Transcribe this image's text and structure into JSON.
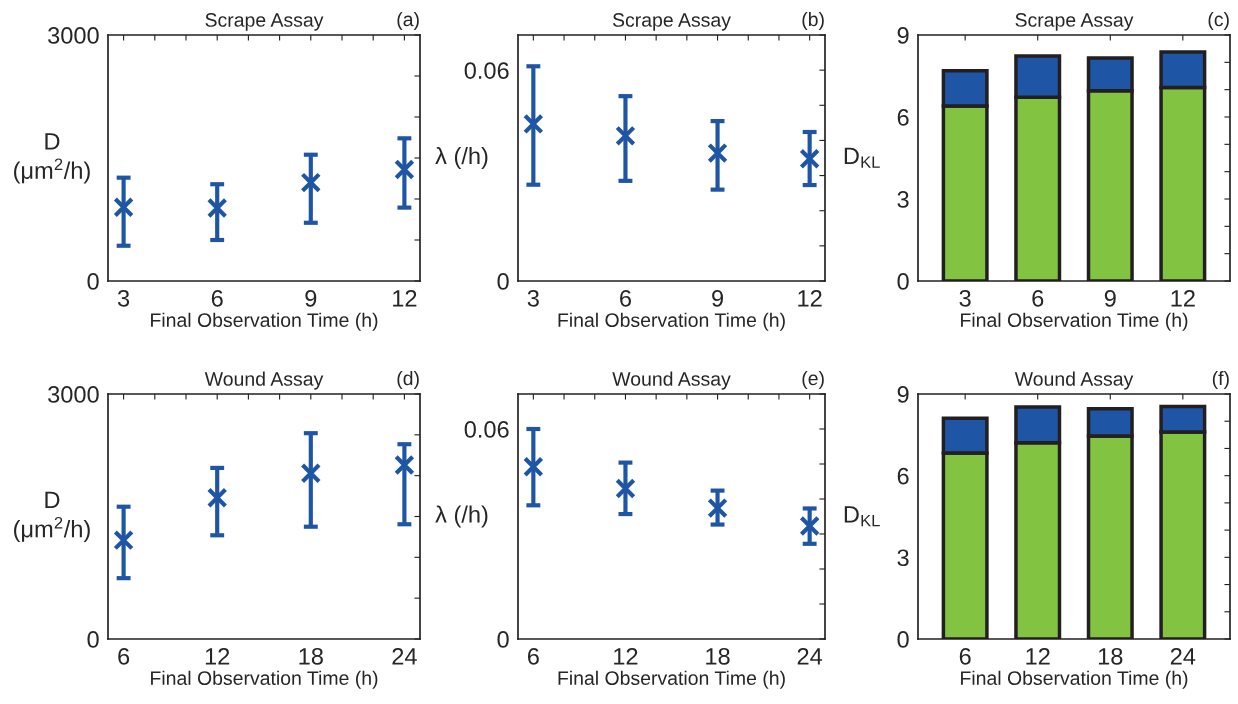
{
  "chart_data": [
    {
      "type": "scatter",
      "title": "Scrape Assay",
      "annotations": [
        "(a)"
      ],
      "ylabel": "D\n(μm$^{2}$/h)",
      "xlabel": "Final Observation Time (h)",
      "marker": "cross",
      "x": [
        3,
        6,
        9,
        12
      ],
      "xlim": [
        2.5,
        12.5
      ],
      "xticks": [
        3,
        {
          "value": 4,
          "label": null
        },
        {
          "value": 5,
          "label": null
        },
        6,
        {
          "value": 7,
          "label": null
        },
        {
          "value": 8,
          "label": null
        },
        9,
        {
          "value": 10,
          "label": null
        },
        {
          "value": 11,
          "label": null
        },
        12
      ],
      "ylim": [
        0,
        3000
      ],
      "yticks": [
        0,
        {
          "value": 500,
          "label": null
        },
        {
          "value": 1000,
          "label": null
        },
        {
          "value": 1500,
          "label": null
        },
        {
          "value": 2000,
          "label": null
        },
        {
          "value": 2500,
          "label": null
        },
        3000
      ],
      "series": [
        {
          "color": "#1f55a5",
          "values": [
            900,
            890,
            1200,
            1360
          ],
          "errors": [
            [
              430,
              1260
            ],
            [
              500,
              1180
            ],
            [
              710,
              1540
            ],
            [
              895,
              1740
            ]
          ]
        }
      ]
    },
    {
      "type": "scatter",
      "title": "Scrape Assay",
      "annotations": [
        "(b)"
      ],
      "ylabel": "λ (/h)",
      "xlabel": "Final Observation Time (h)",
      "marker": "cross",
      "x": [
        3,
        6,
        9,
        12
      ],
      "xlim": [
        2.5,
        12.5
      ],
      "xticks": [
        3,
        {
          "value": 4,
          "label": null
        },
        {
          "value": 5,
          "label": null
        },
        6,
        {
          "value": 7,
          "label": null
        },
        {
          "value": 8,
          "label": null
        },
        9,
        {
          "value": 10,
          "label": null
        },
        {
          "value": 11,
          "label": null
        },
        12
      ],
      "ylim": [
        0,
        0.07
      ],
      "yticks": [
        0,
        {
          "value": 0.01,
          "label": null
        },
        {
          "value": 0.02,
          "label": null
        },
        {
          "value": 0.03,
          "label": null
        },
        {
          "value": 0.04,
          "label": null
        },
        {
          "value": 0.05,
          "label": null
        },
        0.06,
        {
          "value": 0.07,
          "label": null
        }
      ],
      "series": [
        {
          "color": "#1f55a5",
          "values": [
            0.0447,
            0.0413,
            0.0364,
            0.0348
          ],
          "errors": [
            [
              0.0274,
              0.0611
            ],
            [
              0.0285,
              0.0526
            ],
            [
              0.026,
              0.0455
            ],
            [
              0.0273,
              0.0424
            ]
          ]
        }
      ]
    },
    {
      "type": "bar",
      "stacked": true,
      "title": "Scrape Assay",
      "annotations": [
        "(c)"
      ],
      "ylabel": "D$_{KL}$",
      "xlabel": "Final Observation Time (h)",
      "categories": [
        "3",
        "6",
        "9",
        "12"
      ],
      "ylim": [
        0,
        9
      ],
      "yticks": [
        0,
        {
          "value": 1,
          "label": null
        },
        {
          "value": 2,
          "label": null
        },
        3,
        {
          "value": 4,
          "label": null
        },
        {
          "value": 5,
          "label": null
        },
        6,
        {
          "value": 7,
          "label": null
        },
        {
          "value": 8,
          "label": null
        },
        9
      ],
      "series": [
        {
          "color": "#82c341",
          "values": [
            6.4,
            6.72,
            6.96,
            7.08
          ]
        },
        {
          "color": "#1f55a5",
          "values": [
            1.29,
            1.51,
            1.2,
            1.3
          ]
        }
      ]
    },
    {
      "type": "scatter",
      "title": "Wound Assay",
      "annotations": [
        "(d)"
      ],
      "ylabel": "D\n(μm$^{2}$/h)",
      "xlabel": "Final Observation Time (h)",
      "marker": "cross",
      "x": [
        6,
        12,
        18,
        24
      ],
      "xlim": [
        5,
        25
      ],
      "xticks": [
        6,
        {
          "value": 8,
          "label": null
        },
        {
          "value": 10,
          "label": null
        },
        12,
        {
          "value": 14,
          "label": null
        },
        {
          "value": 16,
          "label": null
        },
        18,
        {
          "value": 20,
          "label": null
        },
        {
          "value": 22,
          "label": null
        },
        24
      ],
      "ylim": [
        0,
        3000
      ],
      "yticks": [
        0,
        {
          "value": 500,
          "label": null
        },
        {
          "value": 1000,
          "label": null
        },
        {
          "value": 1500,
          "label": null
        },
        {
          "value": 2000,
          "label": null
        },
        {
          "value": 2500,
          "label": null
        },
        3000
      ],
      "series": [
        {
          "color": "#1f55a5",
          "values": [
            1210,
            1730,
            2030,
            2130
          ],
          "errors": [
            [
              745,
              1620
            ],
            [
              1270,
              2095
            ],
            [
              1375,
              2520
            ],
            [
              1405,
              2385
            ]
          ]
        }
      ]
    },
    {
      "type": "scatter",
      "title": "Wound Assay",
      "annotations": [
        "(e)"
      ],
      "ylabel": "λ (/h)",
      "xlabel": "Final Observation Time (h)",
      "marker": "cross",
      "x": [
        6,
        12,
        18,
        24
      ],
      "xlim": [
        5,
        25
      ],
      "xticks": [
        6,
        {
          "value": 8,
          "label": null
        },
        {
          "value": 10,
          "label": null
        },
        12,
        {
          "value": 14,
          "label": null
        },
        {
          "value": 16,
          "label": null
        },
        18,
        {
          "value": 20,
          "label": null
        },
        {
          "value": 22,
          "label": null
        },
        24
      ],
      "ylim": [
        0,
        0.07
      ],
      "yticks": [
        0,
        {
          "value": 0.01,
          "label": null
        },
        {
          "value": 0.02,
          "label": null
        },
        {
          "value": 0.03,
          "label": null
        },
        {
          "value": 0.04,
          "label": null
        },
        {
          "value": 0.05,
          "label": null
        },
        0.06,
        {
          "value": 0.07,
          "label": null
        }
      ],
      "series": [
        {
          "color": "#1f55a5",
          "values": [
            0.0492,
            0.043,
            0.0374,
            0.0323
          ],
          "errors": [
            [
              0.0382,
              0.06
            ],
            [
              0.0357,
              0.0504
            ],
            [
              0.0327,
              0.0424
            ],
            [
              0.0272,
              0.0373
            ]
          ]
        }
      ]
    },
    {
      "type": "bar",
      "stacked": true,
      "title": "Wound Assay",
      "annotations": [
        "(f)"
      ],
      "ylabel": "D$_{KL}$",
      "xlabel": "Final Observation Time (h)",
      "categories": [
        "6",
        "12",
        "18",
        "24"
      ],
      "ylim": [
        0,
        9
      ],
      "yticks": [
        0,
        {
          "value": 1,
          "label": null
        },
        {
          "value": 2,
          "label": null
        },
        3,
        {
          "value": 4,
          "label": null
        },
        {
          "value": 5,
          "label": null
        },
        6,
        {
          "value": 7,
          "label": null
        },
        {
          "value": 8,
          "label": null
        },
        9
      ],
      "series": [
        {
          "color": "#82c341",
          "values": [
            6.83,
            7.21,
            7.46,
            7.6
          ]
        },
        {
          "color": "#1f55a5",
          "values": [
            1.28,
            1.31,
            1.0,
            0.94
          ]
        }
      ]
    }
  ]
}
